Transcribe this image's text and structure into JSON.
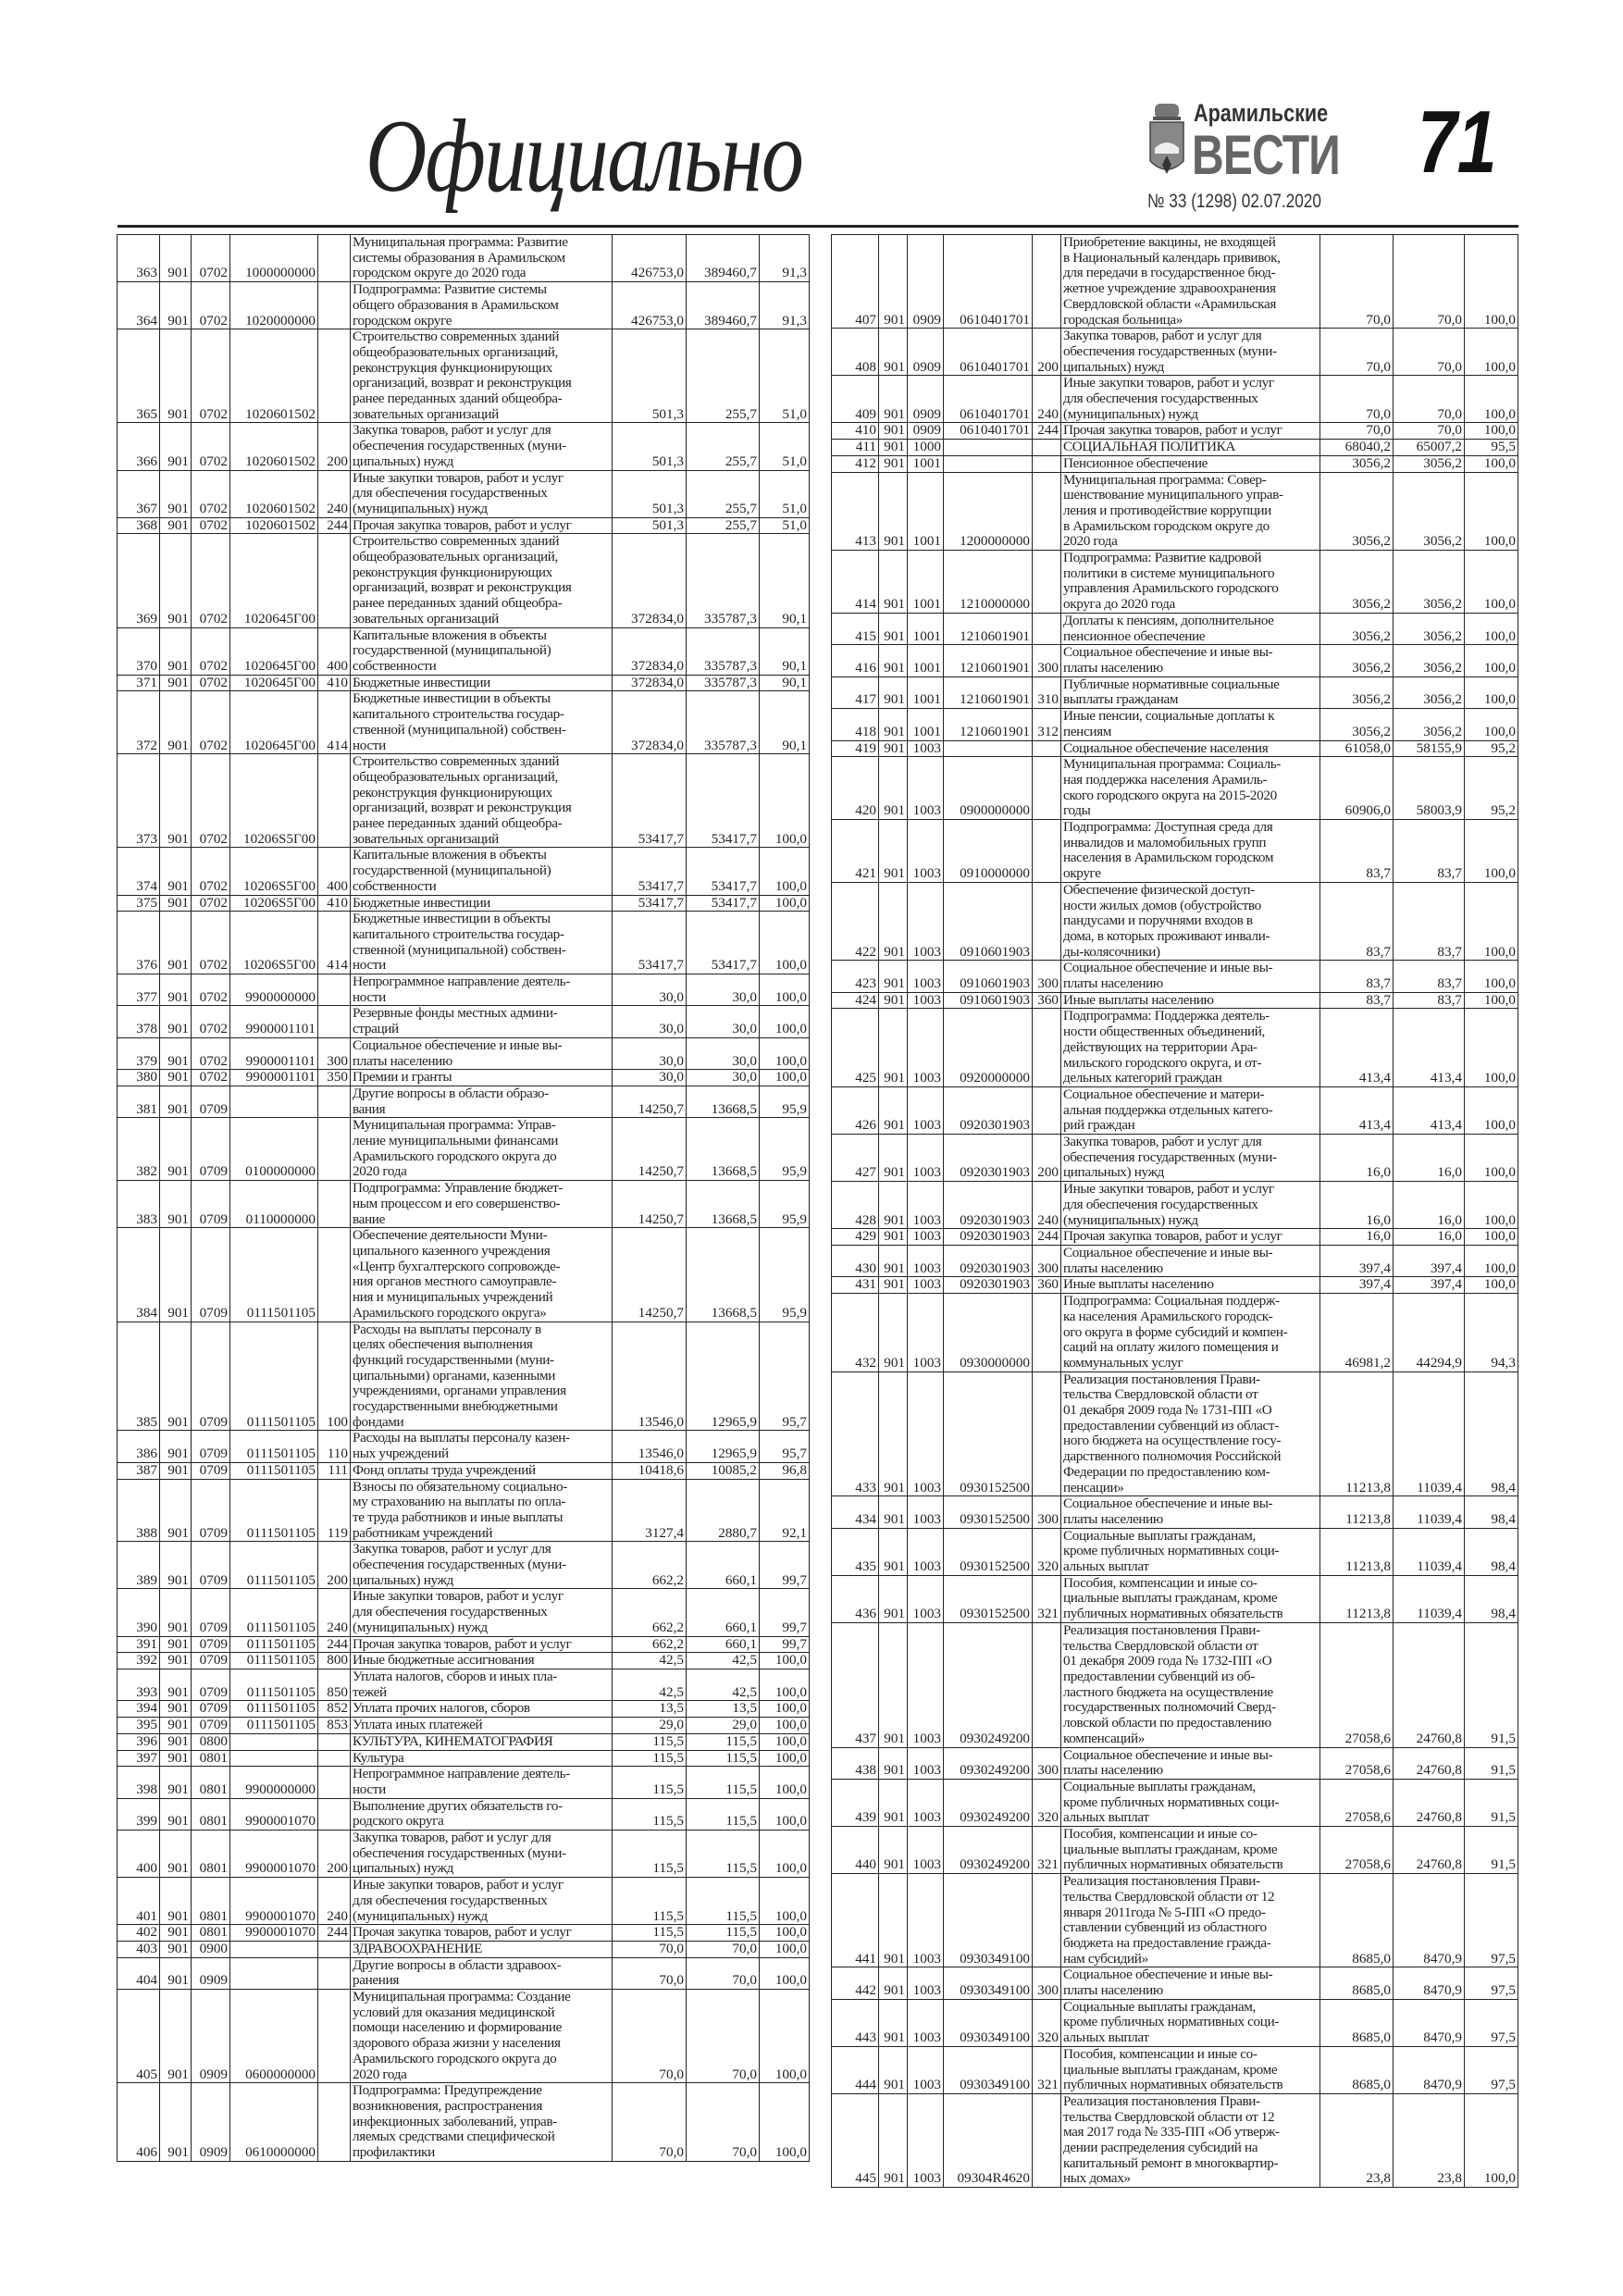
{
  "header": {
    "section_title": "Официально",
    "logo_small": "Арамильские",
    "logo_big": "ВЕСТИ",
    "issue": "№ 33 (1298) 02.07.2020",
    "page_number": "71"
  },
  "left_table": [
    [
      "363",
      "901",
      "0702",
      "1000000000",
      "",
      "Муниципальная программа: Развитие\nсистемы образования в Арамильском\nгородском округе до 2020 года",
      "426753,0",
      "389460,7",
      "91,3"
    ],
    [
      "364",
      "901",
      "0702",
      "1020000000",
      "",
      "Подпрограмма: Развитие системы\nобщего образования в Арамильском\nгородском округе",
      "426753,0",
      "389460,7",
      "91,3"
    ],
    [
      "365",
      "901",
      "0702",
      "1020601502",
      "",
      "Строительство современных зданий\nобщеобразовательных организаций,\nреконструкция функционирующих\nорганизаций, возврат и реконструкция\nранее переданных зданий общеобра-\nзовательных организаций",
      "501,3",
      "255,7",
      "51,0"
    ],
    [
      "366",
      "901",
      "0702",
      "1020601502",
      "200",
      "Закупка товаров, работ и услуг для\nобеспечения государственных (муни-\nципальных) нужд",
      "501,3",
      "255,7",
      "51,0"
    ],
    [
      "367",
      "901",
      "0702",
      "1020601502",
      "240",
      "Иные закупки товаров, работ и услуг\nдля обеспечения государственных\n(муниципальных) нужд",
      "501,3",
      "255,7",
      "51,0"
    ],
    [
      "368",
      "901",
      "0702",
      "1020601502",
      "244",
      "Прочая закупка товаров, работ и услуг",
      "501,3",
      "255,7",
      "51,0"
    ],
    [
      "369",
      "901",
      "0702",
      "1020645Г00",
      "",
      "Строительство современных зданий\nобщеобразовательных организаций,\nреконструкция функционирующих\nорганизаций, возврат и реконструкция\nранее переданных зданий общеобра-\nзовательных организаций",
      "372834,0",
      "335787,3",
      "90,1"
    ],
    [
      "370",
      "901",
      "0702",
      "1020645Г00",
      "400",
      "Капитальные вложения в объекты\nгосударственной (муниципальной)\nсобственности",
      "372834,0",
      "335787,3",
      "90,1"
    ],
    [
      "371",
      "901",
      "0702",
      "1020645Г00",
      "410",
      "Бюджетные инвестиции",
      "372834,0",
      "335787,3",
      "90,1"
    ],
    [
      "372",
      "901",
      "0702",
      "1020645Г00",
      "414",
      "Бюджетные инвестиции в объекты\nкапитального строительства государ-\nственной (муниципальной) собствен-\nности",
      "372834,0",
      "335787,3",
      "90,1"
    ],
    [
      "373",
      "901",
      "0702",
      "10206S5Г00",
      "",
      "Строительство современных зданий\nобщеобразовательных организаций,\nреконструкция функционирующих\nорганизаций, возврат и реконструкция\nранее переданных зданий общеобра-\nзовательных организаций",
      "53417,7",
      "53417,7",
      "100,0"
    ],
    [
      "374",
      "901",
      "0702",
      "10206S5Г00",
      "400",
      "Капитальные вложения в объекты\nгосударственной (муниципальной)\nсобственности",
      "53417,7",
      "53417,7",
      "100,0"
    ],
    [
      "375",
      "901",
      "0702",
      "10206S5Г00",
      "410",
      "Бюджетные инвестиции",
      "53417,7",
      "53417,7",
      "100,0"
    ],
    [
      "376",
      "901",
      "0702",
      "10206S5Г00",
      "414",
      "Бюджетные инвестиции в объекты\nкапитального строительства государ-\nственной (муниципальной) собствен-\nности",
      "53417,7",
      "53417,7",
      "100,0"
    ],
    [
      "377",
      "901",
      "0702",
      "9900000000",
      "",
      "Непрограммное направление деятель-\nности",
      "30,0",
      "30,0",
      "100,0"
    ],
    [
      "378",
      "901",
      "0702",
      "9900001101",
      "",
      "Резервные фонды местных админи-\nстраций",
      "30,0",
      "30,0",
      "100,0"
    ],
    [
      "379",
      "901",
      "0702",
      "9900001101",
      "300",
      "Социальное обеспечение и иные вы-\nплаты населению",
      "30,0",
      "30,0",
      "100,0"
    ],
    [
      "380",
      "901",
      "0702",
      "9900001101",
      "350",
      "Премии и гранты",
      "30,0",
      "30,0",
      "100,0"
    ],
    [
      "381",
      "901",
      "0709",
      "",
      "",
      "Другие вопросы в области образо-\nвания",
      "14250,7",
      "13668,5",
      "95,9"
    ],
    [
      "382",
      "901",
      "0709",
      "0100000000",
      "",
      "Муниципальная программа: Управ-\nление муниципальными финансами\nАрамильского городского округа до\n2020 года",
      "14250,7",
      "13668,5",
      "95,9"
    ],
    [
      "383",
      "901",
      "0709",
      "0110000000",
      "",
      "Подпрограмма: Управление бюджет-\nным процессом и его совершенство-\nвание",
      "14250,7",
      "13668,5",
      "95,9"
    ],
    [
      "384",
      "901",
      "0709",
      "0111501105",
      "",
      "Обеспечение деятельности Муни-\nципального казенного учреждения\n«Центр бухгалтерского сопровожде-\nния органов местного самоуправле-\nния и муниципальных учреждений\nАрамильского городского округа»",
      "14250,7",
      "13668,5",
      "95,9"
    ],
    [
      "385",
      "901",
      "0709",
      "0111501105",
      "100",
      "Расходы на выплаты персоналу в\nцелях обеспечения выполнения\nфункций государственными (муни-\nципальными) органами, казенными\nучреждениями, органами управления\nгосударственными внебюджетными\nфондами",
      "13546,0",
      "12965,9",
      "95,7"
    ],
    [
      "386",
      "901",
      "0709",
      "0111501105",
      "110",
      "Расходы на выплаты персоналу казен-\nных учреждений",
      "13546,0",
      "12965,9",
      "95,7"
    ],
    [
      "387",
      "901",
      "0709",
      "0111501105",
      "111",
      "Фонд оплаты труда учреждений",
      "10418,6",
      "10085,2",
      "96,8"
    ],
    [
      "388",
      "901",
      "0709",
      "0111501105",
      "119",
      "Взносы по обязательному социально-\nму страхованию на выплаты по опла-\nте труда работников и иные выплаты\nработникам учреждений",
      "3127,4",
      "2880,7",
      "92,1"
    ],
    [
      "389",
      "901",
      "0709",
      "0111501105",
      "200",
      "Закупка товаров, работ и услуг для\nобеспечения государственных (муни-\nципальных) нужд",
      "662,2",
      "660,1",
      "99,7"
    ],
    [
      "390",
      "901",
      "0709",
      "0111501105",
      "240",
      "Иные закупки товаров, работ и услуг\nдля обеспечения государственных\n(муниципальных) нужд",
      "662,2",
      "660,1",
      "99,7"
    ],
    [
      "391",
      "901",
      "0709",
      "0111501105",
      "244",
      "Прочая закупка товаров, работ и услуг",
      "662,2",
      "660,1",
      "99,7"
    ],
    [
      "392",
      "901",
      "0709",
      "0111501105",
      "800",
      "Иные бюджетные ассигнования",
      "42,5",
      "42,5",
      "100,0"
    ],
    [
      "393",
      "901",
      "0709",
      "0111501105",
      "850",
      "Уплата налогов, сборов и иных пла-\nтежей",
      "42,5",
      "42,5",
      "100,0"
    ],
    [
      "394",
      "901",
      "0709",
      "0111501105",
      "852",
      "Уплата прочих налогов, сборов",
      "13,5",
      "13,5",
      "100,0"
    ],
    [
      "395",
      "901",
      "0709",
      "0111501105",
      "853",
      "Уплата иных платежей",
      "29,0",
      "29,0",
      "100,0"
    ],
    [
      "396",
      "901",
      "0800",
      "",
      "",
      "КУЛЬТУРА, КИНЕМАТОГРАФИЯ",
      "115,5",
      "115,5",
      "100,0"
    ],
    [
      "397",
      "901",
      "0801",
      "",
      "",
      "Культура",
      "115,5",
      "115,5",
      "100,0"
    ],
    [
      "398",
      "901",
      "0801",
      "9900000000",
      "",
      "Непрограммное направление деятель-\nности",
      "115,5",
      "115,5",
      "100,0"
    ],
    [
      "399",
      "901",
      "0801",
      "9900001070",
      "",
      "Выполнение других обязательств го-\nродского округа",
      "115,5",
      "115,5",
      "100,0"
    ],
    [
      "400",
      "901",
      "0801",
      "9900001070",
      "200",
      "Закупка товаров, работ и услуг для\nобеспечения государственных (муни-\nципальных) нужд",
      "115,5",
      "115,5",
      "100,0"
    ],
    [
      "401",
      "901",
      "0801",
      "9900001070",
      "240",
      "Иные закупки товаров, работ и услуг\nдля обеспечения государственных\n(муниципальных) нужд",
      "115,5",
      "115,5",
      "100,0"
    ],
    [
      "402",
      "901",
      "0801",
      "9900001070",
      "244",
      "Прочая закупка товаров, работ и услуг",
      "115,5",
      "115,5",
      "100,0"
    ],
    [
      "403",
      "901",
      "0900",
      "",
      "",
      "ЗДРАВООХРАНЕНИЕ",
      "70,0",
      "70,0",
      "100,0"
    ],
    [
      "404",
      "901",
      "0909",
      "",
      "",
      "Другие вопросы в области здравоох-\nранения",
      "70,0",
      "70,0",
      "100,0"
    ],
    [
      "405",
      "901",
      "0909",
      "0600000000",
      "",
      "Муниципальная программа: Создание\nусловий для оказания медицинской\nпомощи населению и формирование\nздорового образа жизни у населения\nАрамильского городского округа до\n2020 года",
      "70,0",
      "70,0",
      "100,0"
    ],
    [
      "406",
      "901",
      "0909",
      "0610000000",
      "",
      "Подпрограмма: Предупреждение\nвозникновения, распространения\nинфекционных заболеваний, управ-\nляемых средствами специфической\nпрофилактики",
      "70,0",
      "70,0",
      "100,0"
    ]
  ],
  "right_table": [
    [
      "407",
      "901",
      "0909",
      "0610401701",
      "",
      "Приобретение вакцины, не входящей\nв Национальный календарь прививок,\nдля передачи в государственное бюд-\nжетное учреждение здравоохранения\nСвердловской области «Арамильская\nгородская больница»",
      "70,0",
      "70,0",
      "100,0"
    ],
    [
      "408",
      "901",
      "0909",
      "0610401701",
      "200",
      "Закупка товаров, работ и услуг для\nобеспечения государственных (муни-\nципальных) нужд",
      "70,0",
      "70,0",
      "100,0"
    ],
    [
      "409",
      "901",
      "0909",
      "0610401701",
      "240",
      "Иные закупки товаров, работ и услуг\nдля обеспечения государственных\n(муниципальных) нужд",
      "70,0",
      "70,0",
      "100,0"
    ],
    [
      "410",
      "901",
      "0909",
      "0610401701",
      "244",
      "Прочая закупка товаров, работ и услуг",
      "70,0",
      "70,0",
      "100,0"
    ],
    [
      "411",
      "901",
      "1000",
      "",
      "",
      "СОЦИАЛЬНАЯ ПОЛИТИКА",
      "68040,2",
      "65007,2",
      "95,5"
    ],
    [
      "412",
      "901",
      "1001",
      "",
      "",
      "Пенсионное обеспечение",
      "3056,2",
      "3056,2",
      "100,0"
    ],
    [
      "413",
      "901",
      "1001",
      "1200000000",
      "",
      "Муниципальная программа: Совер-\nшенствование муниципального управ-\nления и противодействие коррупции\nв Арамильском городском округе до\n2020 года",
      "3056,2",
      "3056,2",
      "100,0"
    ],
    [
      "414",
      "901",
      "1001",
      "1210000000",
      "",
      "Подпрограмма: Развитие кадровой\nполитики в системе муниципального\nуправления Арамильского городского\nокруга до 2020 года",
      "3056,2",
      "3056,2",
      "100,0"
    ],
    [
      "415",
      "901",
      "1001",
      "1210601901",
      "",
      "Доплаты к пенсиям, дополнительное\nпенсионное обеспечение",
      "3056,2",
      "3056,2",
      "100,0"
    ],
    [
      "416",
      "901",
      "1001",
      "1210601901",
      "300",
      "Социальное обеспечение и иные вы-\nплаты населению",
      "3056,2",
      "3056,2",
      "100,0"
    ],
    [
      "417",
      "901",
      "1001",
      "1210601901",
      "310",
      "Публичные нормативные социальные\nвыплаты гражданам",
      "3056,2",
      "3056,2",
      "100,0"
    ],
    [
      "418",
      "901",
      "1001",
      "1210601901",
      "312",
      "Иные пенсии, социальные доплаты к\nпенсиям",
      "3056,2",
      "3056,2",
      "100,0"
    ],
    [
      "419",
      "901",
      "1003",
      "",
      "",
      "Социальное обеспечение населения",
      "61058,0",
      "58155,9",
      "95,2"
    ],
    [
      "420",
      "901",
      "1003",
      "0900000000",
      "",
      "Муниципальная программа: Социаль-\nная поддержка населения Арамиль-\nского городского округа на 2015-2020\nгоды",
      "60906,0",
      "58003,9",
      "95,2"
    ],
    [
      "421",
      "901",
      "1003",
      "0910000000",
      "",
      "Подпрограмма: Доступная среда для\nинвалидов и маломобильных групп\nнаселения в Арамильском городском\nокруге",
      "83,7",
      "83,7",
      "100,0"
    ],
    [
      "422",
      "901",
      "1003",
      "0910601903",
      "",
      "Обеспечение физической доступ-\nности жилых домов (обустройство\nпандусами и поручнями входов в\nдома, в которых проживают инвали-\nды-колясочники)",
      "83,7",
      "83,7",
      "100,0"
    ],
    [
      "423",
      "901",
      "1003",
      "0910601903",
      "300",
      "Социальное обеспечение и иные вы-\nплаты населению",
      "83,7",
      "83,7",
      "100,0"
    ],
    [
      "424",
      "901",
      "1003",
      "0910601903",
      "360",
      "Иные выплаты населению",
      "83,7",
      "83,7",
      "100,0"
    ],
    [
      "425",
      "901",
      "1003",
      "0920000000",
      "",
      "Подпрограмма: Поддержка деятель-\nности общественных объединений,\nдействующих на территории Ара-\nмильского городского округа, и от-\nдельных категорий граждан",
      "413,4",
      "413,4",
      "100,0"
    ],
    [
      "426",
      "901",
      "1003",
      "0920301903",
      "",
      "Социальное обеспечение и матери-\nальная поддержка отдельных катего-\nрий граждан",
      "413,4",
      "413,4",
      "100,0"
    ],
    [
      "427",
      "901",
      "1003",
      "0920301903",
      "200",
      "Закупка товаров, работ и услуг для\nобеспечения государственных (муни-\nципальных) нужд",
      "16,0",
      "16,0",
      "100,0"
    ],
    [
      "428",
      "901",
      "1003",
      "0920301903",
      "240",
      "Иные закупки товаров, работ и услуг\nдля обеспечения государственных\n(муниципальных) нужд",
      "16,0",
      "16,0",
      "100,0"
    ],
    [
      "429",
      "901",
      "1003",
      "0920301903",
      "244",
      "Прочая закупка товаров, работ и услуг",
      "16,0",
      "16,0",
      "100,0"
    ],
    [
      "430",
      "901",
      "1003",
      "0920301903",
      "300",
      "Социальное обеспечение и иные вы-\nплаты населению",
      "397,4",
      "397,4",
      "100,0"
    ],
    [
      "431",
      "901",
      "1003",
      "0920301903",
      "360",
      "Иные выплаты населению",
      "397,4",
      "397,4",
      "100,0"
    ],
    [
      "432",
      "901",
      "1003",
      "0930000000",
      "",
      "Подпрограмма: Социальная поддерж-\nка населения Арамильского городск-\nого округа в форме субсидий и компен-\nсаций на оплату жилого помещения и\nкоммунальных услуг",
      "46981,2",
      "44294,9",
      "94,3"
    ],
    [
      "433",
      "901",
      "1003",
      "0930152500",
      "",
      "Реализация постановления Прави-\nтельства Свердловской области от\n01 декабря 2009 года № 1731-ПП «О\nпредоставлении субвенций из област-\nного бюджета на осуществление госу-\nдарственного полномочия Российской\nФедерации по предоставлению ком-\nпенсации»",
      "11213,8",
      "11039,4",
      "98,4"
    ],
    [
      "434",
      "901",
      "1003",
      "0930152500",
      "300",
      "Социальное обеспечение и иные вы-\nплаты населению",
      "11213,8",
      "11039,4",
      "98,4"
    ],
    [
      "435",
      "901",
      "1003",
      "0930152500",
      "320",
      "Социальные выплаты гражданам,\nкроме публичных нормативных соци-\nальных выплат",
      "11213,8",
      "11039,4",
      "98,4"
    ],
    [
      "436",
      "901",
      "1003",
      "0930152500",
      "321",
      "Пособия, компенсации и иные со-\nциальные выплаты гражданам, кроме\nпубличных нормативных обязательств",
      "11213,8",
      "11039,4",
      "98,4"
    ],
    [
      "437",
      "901",
      "1003",
      "0930249200",
      "",
      "Реализация постановления Прави-\nтельства Свердловской области от\n01 декабря 2009 года № 1732-ПП «О\nпредоставлении субвенций из об-\nластного бюджета на осуществление\nгосударственных полномочий Сверд-\nловской области по предоставлению\nкомпенсаций»",
      "27058,6",
      "24760,8",
      "91,5"
    ],
    [
      "438",
      "901",
      "1003",
      "0930249200",
      "300",
      "Социальное обеспечение и иные вы-\nплаты населению",
      "27058,6",
      "24760,8",
      "91,5"
    ],
    [
      "439",
      "901",
      "1003",
      "0930249200",
      "320",
      "Социальные выплаты гражданам,\nкроме публичных нормативных соци-\nальных выплат",
      "27058,6",
      "24760,8",
      "91,5"
    ],
    [
      "440",
      "901",
      "1003",
      "0930249200",
      "321",
      "Пособия, компенсации и иные со-\nциальные выплаты гражданам, кроме\nпубличных нормативных обязательств",
      "27058,6",
      "24760,8",
      "91,5"
    ],
    [
      "441",
      "901",
      "1003",
      "0930349100",
      "",
      "Реализация постановления Прави-\nтельства Свердловской области от 12\nянваря 2011года № 5-ПП «О предо-\nставлении субвенций из областного\nбюджета на предоставление гражда-\nнам субсидий»",
      "8685,0",
      "8470,9",
      "97,5"
    ],
    [
      "442",
      "901",
      "1003",
      "0930349100",
      "300",
      "Социальное обеспечение и иные вы-\nплаты населению",
      "8685,0",
      "8470,9",
      "97,5"
    ],
    [
      "443",
      "901",
      "1003",
      "0930349100",
      "320",
      "Социальные выплаты гражданам,\nкроме публичных нормативных соци-\nальных выплат",
      "8685,0",
      "8470,9",
      "97,5"
    ],
    [
      "444",
      "901",
      "1003",
      "0930349100",
      "321",
      "Пособия, компенсации и иные со-\nциальные выплаты гражданам, кроме\nпубличных нормативных обязательств",
      "8685,0",
      "8470,9",
      "97,5"
    ],
    [
      "445",
      "901",
      "1003",
      "09304R4620",
      "",
      "Реализация постановления Прави-\nтельства Свердловской области от 12\nмая 2017 года № 335-ПП «Об утверж-\nдении распределения субсидий на\nкапитальный ремонт в многоквартир-\nных домах»",
      "23,8",
      "23,8",
      "100,0"
    ]
  ]
}
